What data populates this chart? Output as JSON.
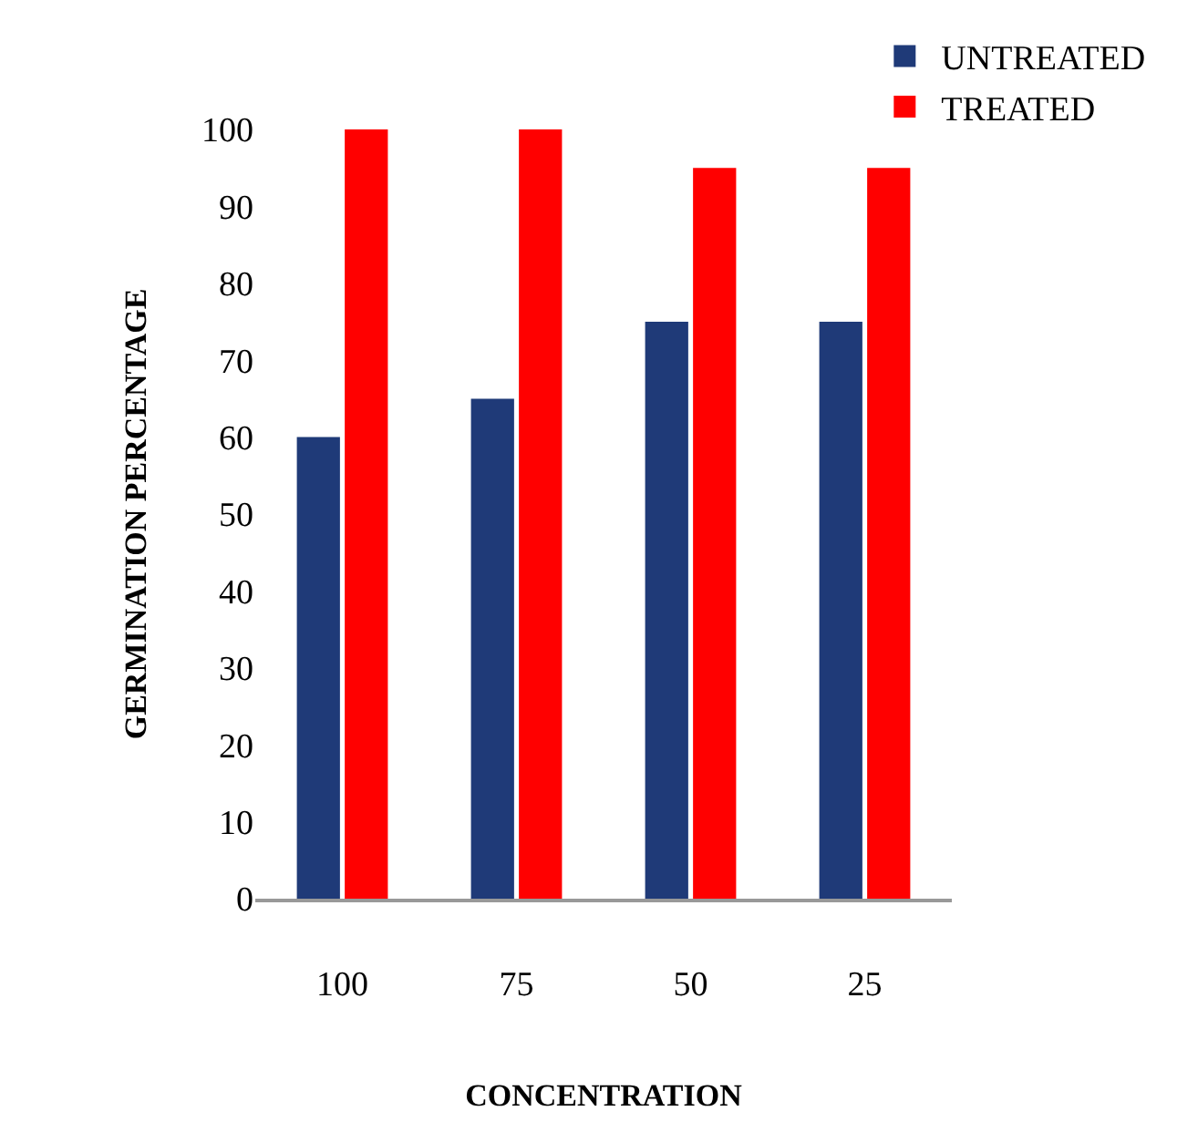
{
  "chart_data": {
    "type": "bar",
    "xlabel": "CONCENTRATION",
    "ylabel": "GERMINATION PERCENTAGE",
    "categories": [
      "100",
      "75",
      "50",
      "25"
    ],
    "series": [
      {
        "name": "UNTREATED",
        "color": "#1f3a78",
        "values": [
          60,
          65,
          75,
          75
        ]
      },
      {
        "name": "TREATED",
        "color": "#ff0000",
        "values": [
          100,
          100,
          95,
          95
        ]
      }
    ],
    "ylim": [
      0,
      100
    ],
    "yticks": [
      0,
      10,
      20,
      30,
      40,
      50,
      60,
      70,
      80,
      90,
      100
    ],
    "grid": false,
    "legend": "top right"
  }
}
